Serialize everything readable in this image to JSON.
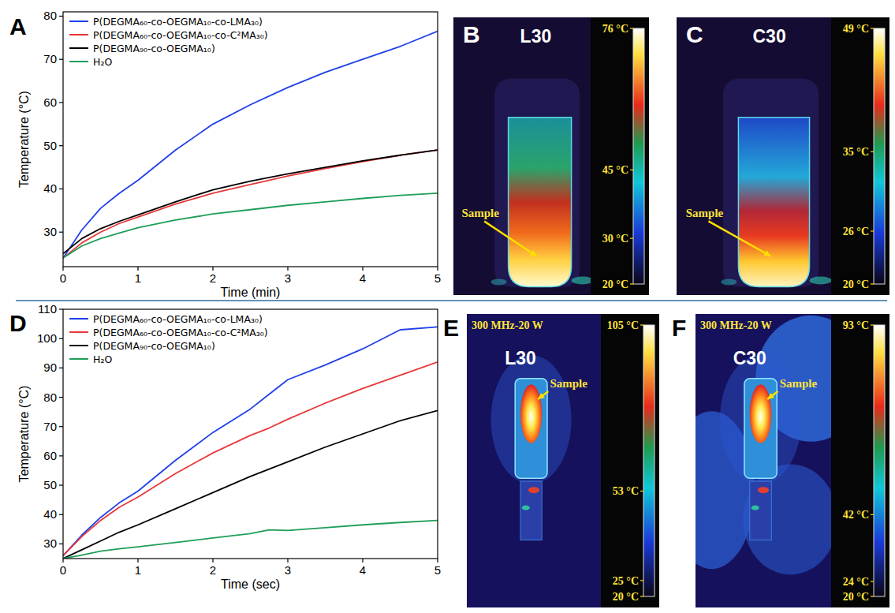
{
  "chart_data": [
    {
      "panel": "A",
      "type": "line",
      "x_label": "Time (min)",
      "y_label": "Temperature (°C)",
      "x": [
        0,
        0.25,
        0.5,
        0.75,
        1,
        1.5,
        2,
        2.5,
        3,
        3.5,
        4,
        4.5,
        5
      ],
      "series": [
        {
          "name": "P(DEGMA₆₀-co-OEGMA₁₀-co-LMA₃₀)",
          "color": "#2040e8",
          "values": [
            24,
            30.5,
            35.5,
            39,
            42,
            49,
            55,
            59.5,
            63.5,
            67,
            70,
            73,
            76.5
          ]
        },
        {
          "name": "P(DEGMA₆₀-co-OEGMA₁₀-co-C²MA₃₀)",
          "color": "#e8383a",
          "values": [
            24,
            27.5,
            30,
            32,
            33.5,
            36.5,
            39,
            41,
            43,
            44.7,
            46.3,
            47.8,
            49
          ]
        },
        {
          "name": "P(DEGMA₉₀-co-OEGMA₁₀)",
          "color": "#000000",
          "values": [
            25,
            28.5,
            30.8,
            32.5,
            34,
            37,
            39.8,
            41.8,
            43.5,
            45,
            46.5,
            47.8,
            49
          ]
        },
        {
          "name": "H₂O",
          "color": "#1f9e5a",
          "values": [
            24,
            26.8,
            28.5,
            29.8,
            31,
            32.8,
            34.2,
            35.2,
            36.2,
            37,
            37.8,
            38.5,
            39
          ]
        }
      ],
      "xlim": [
        0,
        5
      ],
      "ylim": [
        22,
        81
      ],
      "xticks": [
        0,
        1,
        2,
        3,
        4,
        5
      ],
      "yticks": [
        30,
        40,
        50,
        60,
        70,
        80
      ],
      "grid": false,
      "legend": "upper left"
    },
    {
      "panel": "B",
      "type": "thermal_image",
      "title": "L30",
      "annotation": "Sample",
      "colorbar": {
        "range": [
          20,
          76
        ],
        "ticks": [
          {
            "value": 76,
            "label": "76 °C"
          },
          {
            "value": 45,
            "label": "45 °C"
          },
          {
            "value": 30,
            "label": "30 °C"
          },
          {
            "value": 20,
            "label": "20 °C"
          }
        ]
      }
    },
    {
      "panel": "C",
      "type": "thermal_image",
      "title": "C30",
      "annotation": "Sample",
      "colorbar": {
        "range": [
          20,
          49
        ],
        "ticks": [
          {
            "value": 49,
            "label": "49 °C"
          },
          {
            "value": 35,
            "label": "35 °C"
          },
          {
            "value": 26,
            "label": "26 °C"
          },
          {
            "value": 20,
            "label": "20 °C"
          }
        ]
      }
    },
    {
      "panel": "D",
      "type": "line",
      "x_label": "Time (sec)",
      "y_label": "Temperature (°C)",
      "x": [
        0,
        0.25,
        0.5,
        0.75,
        1,
        1.5,
        2,
        2.5,
        2.75,
        3,
        3.5,
        4,
        4.5,
        5
      ],
      "series": [
        {
          "name": "P(DEGMA₆₀-co-OEGMA₁₀-co-LMA₃₀)",
          "color": "#2040e8",
          "values": [
            26,
            33,
            39,
            44,
            48,
            58.5,
            68,
            76,
            81,
            86,
            91,
            96.5,
            103,
            104
          ]
        },
        {
          "name": "P(DEGMA₆₀-co-OEGMA₁₀-co-C²MA₃₀)",
          "color": "#e8383a",
          "values": [
            26,
            32.5,
            38,
            42.5,
            46,
            54,
            61,
            67,
            69.5,
            72.5,
            78,
            83,
            87.5,
            92
          ]
        },
        {
          "name": "P(DEGMA₉₀-co-OEGMA₁₀)",
          "color": "#000000",
          "values": [
            25,
            28,
            31,
            34,
            36.5,
            42,
            47.5,
            53,
            55.5,
            58,
            63,
            67.5,
            72,
            75.5
          ]
        },
        {
          "name": "H₂O",
          "color": "#1f9e5a",
          "values": [
            25,
            26.2,
            27.5,
            28.3,
            29,
            30.5,
            32,
            33.5,
            34.8,
            34.6,
            35.5,
            36.5,
            37.3,
            38
          ]
        }
      ],
      "xlim": [
        0,
        5
      ],
      "ylim": [
        25,
        110
      ],
      "xticks": [
        0,
        1,
        2,
        3,
        4,
        5
      ],
      "yticks": [
        30,
        40,
        50,
        60,
        70,
        80,
        90,
        100,
        110
      ],
      "grid": false,
      "legend": "upper left"
    },
    {
      "panel": "E",
      "type": "thermal_image",
      "title": "L30",
      "subtitle": "300 MHz-20 W",
      "annotation": "Sample",
      "colorbar": {
        "range": [
          20,
          105
        ],
        "ticks": [
          {
            "value": 105,
            "label": "105 °C"
          },
          {
            "value": 53,
            "label": "53 °C"
          },
          {
            "value": 25,
            "label": "25 °C"
          },
          {
            "value": 20,
            "label": "20 °C"
          }
        ]
      }
    },
    {
      "panel": "F",
      "type": "thermal_image",
      "title": "C30",
      "subtitle": "300 MHz-20 W",
      "annotation": "Sample",
      "colorbar": {
        "range": [
          20,
          93
        ],
        "ticks": [
          {
            "value": 93,
            "label": "93 °C"
          },
          {
            "value": 42,
            "label": "42 °C"
          },
          {
            "value": 24,
            "label": "24 °C"
          },
          {
            "value": 20,
            "label": "20 °C"
          }
        ]
      }
    }
  ]
}
